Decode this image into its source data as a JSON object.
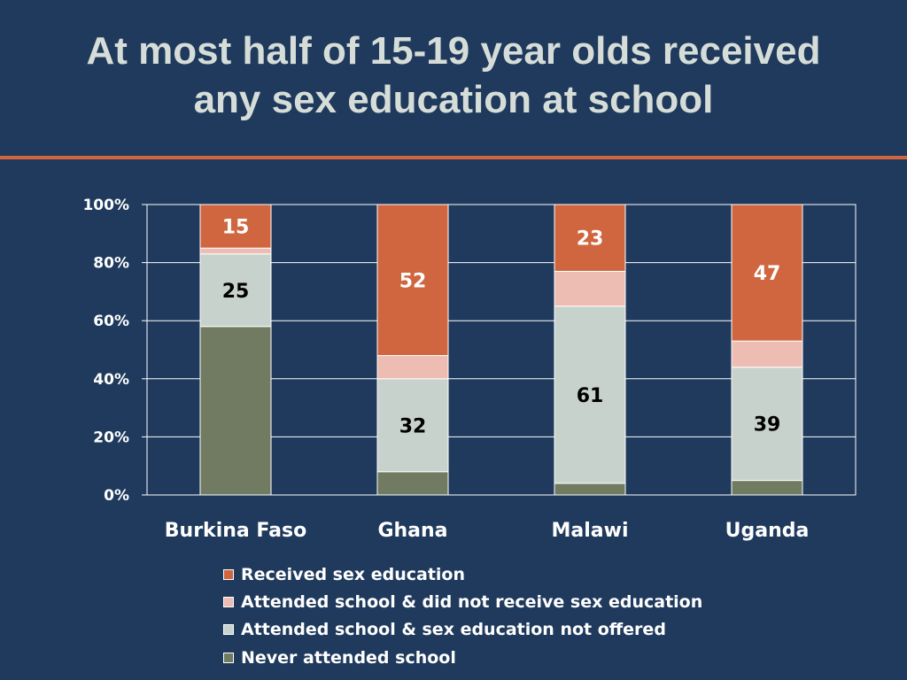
{
  "title": {
    "line1": "At most half of 15-19 year olds received",
    "line2": "any sex education at school"
  },
  "colors": {
    "background": "#1f3a5c",
    "accent_rule": "#d0663f",
    "received": "#d0663f",
    "attended_not_received": "#edbcb3",
    "not_offered": "#c8d2cc",
    "never_attended": "#707b61"
  },
  "chart_data": {
    "type": "bar",
    "stacked": true,
    "percent": true,
    "categories": [
      "Burkina Faso",
      "Ghana",
      "Malawi",
      "Uganda"
    ],
    "series": [
      {
        "name": "Never attended school",
        "values": [
          58,
          8,
          4,
          5
        ],
        "color": "#707b61"
      },
      {
        "name": "Attended school & sex education not offered",
        "values": [
          25,
          32,
          61,
          39
        ],
        "color": "#c8d2cc"
      },
      {
        "name": "Attended school & did not receive sex education",
        "values": [
          2,
          8,
          12,
          9
        ],
        "color": "#edbcb3"
      },
      {
        "name": "Received sex education",
        "values": [
          15,
          52,
          23,
          47
        ],
        "color": "#d0663f"
      }
    ],
    "data_labels": {
      "Received sex education": [
        "15",
        "52",
        "23",
        "47"
      ],
      "Attended school & sex education not offered": [
        "25",
        "32",
        "61",
        "39"
      ]
    },
    "yticks": [
      "0%",
      "20%",
      "40%",
      "60%",
      "80%",
      "100%"
    ],
    "ylim": [
      0,
      100
    ],
    "grid": true,
    "legend": {
      "position": "bottom",
      "entries": [
        "Received sex education",
        "Attended school & did not receive sex education",
        "Attended school & sex education not offered",
        "Never attended school"
      ]
    }
  }
}
